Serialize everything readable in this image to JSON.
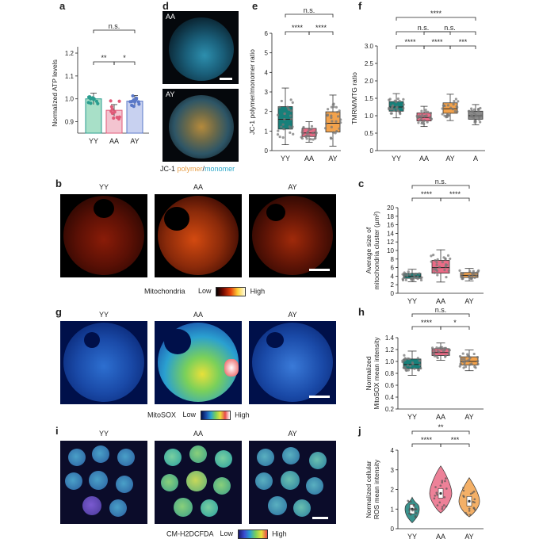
{
  "panels": {
    "a": {
      "label": "a",
      "ylabel": "Normalized ATP levels",
      "yticks": [
        "0.9",
        "1.0",
        "1.1",
        "1.2"
      ],
      "cats": [
        "YY",
        "AA",
        "AY"
      ],
      "sig": [
        "n.s.",
        "**",
        "*"
      ]
    },
    "d": {
      "label": "d",
      "img_labels": [
        "AA",
        "AY"
      ],
      "caption_prefix": "JC-1",
      "caption_polymer": "polymer",
      "caption_slash": "/",
      "caption_monomer": "monomer"
    },
    "e": {
      "label": "e",
      "ylabel": "JC-1 polymer/monomer ratio",
      "yticks": [
        "0",
        "1",
        "2",
        "3",
        "4",
        "5",
        "6"
      ],
      "cats": [
        "YY",
        "AA",
        "AY"
      ],
      "sig": [
        "n.s.",
        "****",
        "****"
      ]
    },
    "f": {
      "label": "f",
      "ylabel": "TMRM/MTG ratio",
      "yticks": [
        "0",
        "0.5",
        "1.0",
        "1.5",
        "2.0",
        "2.5",
        "3.0"
      ],
      "cats": [
        "YY",
        "AA",
        "AY",
        "A"
      ],
      "sig": [
        "****",
        "n.s.",
        "n.s.",
        "****",
        "****",
        "***"
      ]
    },
    "b": {
      "label": "b",
      "titles": [
        "YY",
        "AA",
        "AY"
      ],
      "caption": "Mitochondria",
      "low": "Low",
      "high": "High"
    },
    "c": {
      "label": "c",
      "ylabel1": "Average size of",
      "ylabel2": "mitochondria cluster (µm²)",
      "yticks": [
        "0",
        "2",
        "4",
        "6",
        "8",
        "10",
        "12",
        "14",
        "16",
        "18",
        "20"
      ],
      "cats": [
        "YY",
        "AA",
        "AY"
      ],
      "sig": [
        "n.s.",
        "****",
        "****"
      ]
    },
    "g": {
      "label": "g",
      "titles": [
        "YY",
        "AA",
        "AY"
      ],
      "caption": "MitoSOX",
      "low": "Low",
      "high": "High"
    },
    "h": {
      "label": "h",
      "ylabel1": "Normalized",
      "ylabel2": "MitoSOX mean intensity",
      "yticks": [
        "0.2",
        "0.4",
        "0.6",
        "0.8",
        "1.0",
        "1.2",
        "1.4"
      ],
      "cats": [
        "YY",
        "AA",
        "AY"
      ],
      "sig": [
        "n.s.",
        "****",
        "*"
      ]
    },
    "i": {
      "label": "i",
      "titles": [
        "YY",
        "AA",
        "AY"
      ],
      "caption": "CM-H2DCFDA",
      "low": "Low",
      "high": "High"
    },
    "j": {
      "label": "j",
      "ylabel1": "Normalized cellular",
      "ylabel2": "ROS mean intensity",
      "yticks": [
        "0",
        "1",
        "2",
        "3",
        "4"
      ],
      "cats": [
        "YY",
        "AA",
        "AY"
      ],
      "sig": [
        "**",
        "****",
        "***"
      ]
    }
  },
  "chart_data": [
    {
      "panel": "a",
      "type": "bar",
      "categories": [
        "YY",
        "AA",
        "AY"
      ],
      "values": [
        1.0,
        0.95,
        0.99
      ],
      "ylabel": "Normalized ATP levels",
      "ylim": [
        0.85,
        1.2
      ]
    },
    {
      "panel": "e",
      "type": "box",
      "categories": [
        "YY",
        "AA",
        "AY"
      ],
      "median": [
        1.6,
        0.9,
        1.4
      ],
      "ylabel": "JC-1 polymer/monomer ratio",
      "ylim": [
        0,
        6
      ]
    },
    {
      "panel": "f",
      "type": "box",
      "categories": [
        "YY",
        "AA",
        "AY",
        "A"
      ],
      "median": [
        1.25,
        0.95,
        1.2,
        1.0
      ],
      "ylabel": "TMRM/MTG ratio",
      "ylim": [
        0,
        3.0
      ]
    },
    {
      "panel": "c",
      "type": "box",
      "categories": [
        "YY",
        "AA",
        "AY"
      ],
      "median": [
        4,
        6,
        4.2
      ],
      "ylabel": "Average size of mitochondria cluster (µm²)",
      "ylim": [
        0,
        20
      ]
    },
    {
      "panel": "h",
      "type": "box",
      "categories": [
        "YY",
        "AA",
        "AY"
      ],
      "median": [
        0.95,
        1.15,
        1.0
      ],
      "ylabel": "Normalized MitoSOX mean intensity",
      "ylim": [
        0.2,
        1.4
      ]
    },
    {
      "panel": "j",
      "type": "violin",
      "categories": [
        "YY",
        "AA",
        "AY"
      ],
      "median": [
        1.0,
        1.8,
        1.4
      ],
      "ylabel": "Normalized cellular ROS mean intensity",
      "ylim": [
        0,
        4
      ]
    }
  ],
  "colors": {
    "yy": "#2a9d8f",
    "aa": "#e05a78",
    "ay": "#e8a04a",
    "a4": "#8a8a8a",
    "teal": "#17807a",
    "pink": "#ea6b86",
    "orange": "#f2a24c",
    "bar_yy": "#a8e0c8",
    "bar_aa": "#f3c4d0",
    "bar_ay": "#c8d1f0"
  }
}
